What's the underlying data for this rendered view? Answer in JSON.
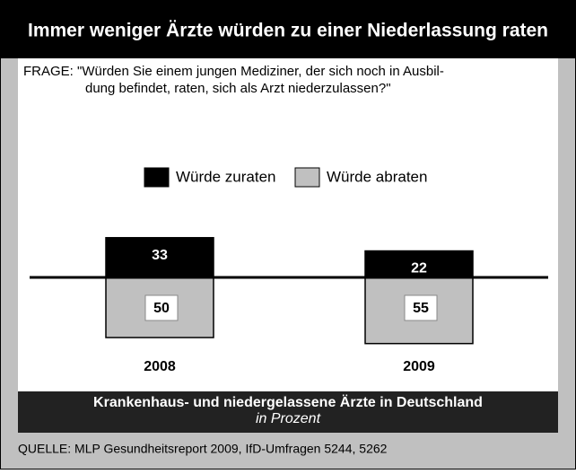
{
  "chart_data": {
    "type": "diverging-bar",
    "title": "Immer weniger Ärzte würden zu einer Niederlassung raten",
    "question": [
      "FRAGE: \"Würden Sie einem jungen Mediziner, der sich noch in Ausbil-",
      "dung befindet, raten, sich als Arzt niederzulassen?\""
    ],
    "categories": [
      "2008",
      "2009"
    ],
    "series": [
      {
        "name": "Würde zuraten",
        "color": "#000000",
        "values": [
          33,
          22
        ]
      },
      {
        "name": "Würde abraten",
        "color": "#c0c0c0",
        "values": [
          50,
          55
        ]
      }
    ],
    "subtitle": "Krankenhaus- und niedergelassene Ärzte in Deutschland",
    "unit_note": "in Prozent",
    "source": "QUELLE: MLP Gesundheitsreport 2009, IfD-Umfragen 5244, 5262"
  }
}
